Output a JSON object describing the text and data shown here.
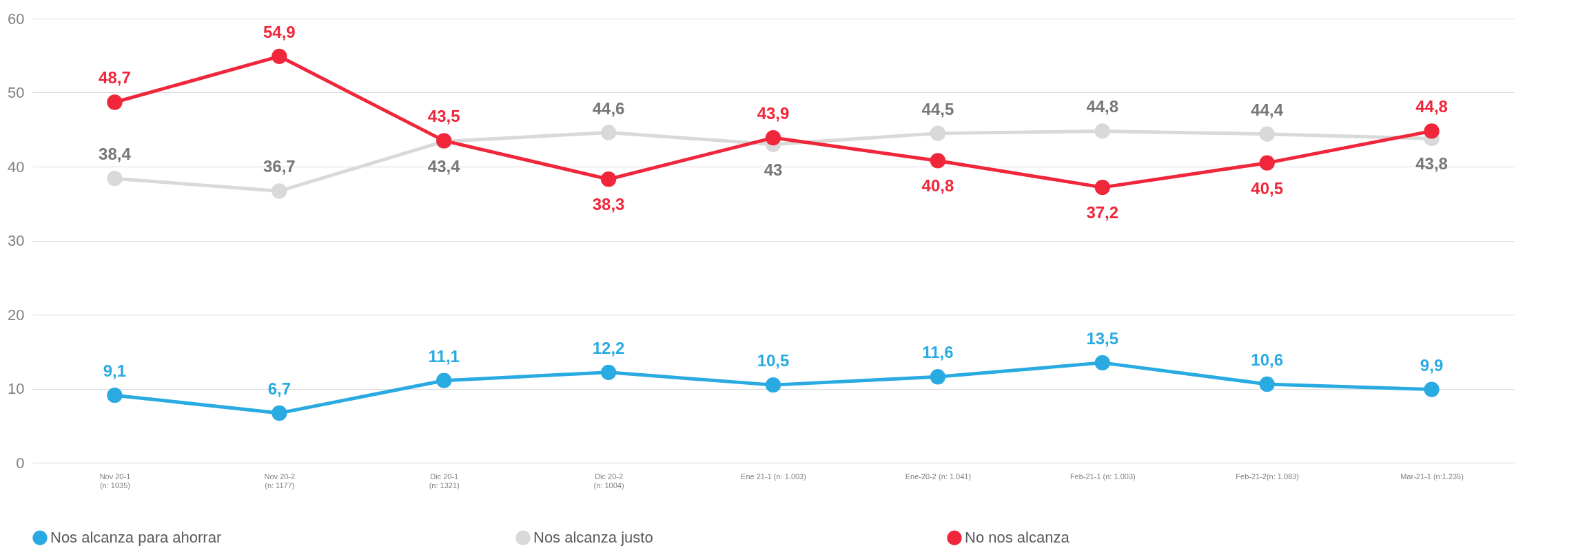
{
  "chart_data": {
    "type": "line",
    "categories": [
      "Nov 20-1\n(n: 1035)",
      "Nov 20-2\n(n: 1177)",
      "Dic 20-1\n(n: 1321)",
      "Dic 20-2\n(n: 1004)",
      "Ene 21-1 (n: 1.003)",
      "Ene-20-2 (n: 1.041)",
      "Feb-21-1 (n: 1.003)",
      "Feb-21-2(n: 1.083)",
      "Mar-21-1 (n:1.235)"
    ],
    "series": [
      {
        "name": "Nos alcanza para ahorrar",
        "color": "#29abe2",
        "values": [
          9.1,
          6.7,
          11.1,
          12.2,
          10.5,
          11.6,
          13.5,
          10.6,
          9.9
        ],
        "value_labels": [
          "9,1",
          "6,7",
          "11,1",
          "12,2",
          "10,5",
          "11,6",
          "13,5",
          "10,6",
          "9,9"
        ]
      },
      {
        "name": "Nos alcanza justo",
        "color": "#d9d9d9",
        "values": [
          38.4,
          36.7,
          43.4,
          44.6,
          43,
          44.5,
          44.8,
          44.4,
          43.8
        ],
        "value_labels": [
          "38,4",
          "36,7",
          "43,4",
          "44,6",
          "43",
          "44,5",
          "44,8",
          "44,4",
          "43,8"
        ]
      },
      {
        "name": "No nos alcanza",
        "color": "#f0263b",
        "values": [
          48.7,
          54.9,
          43.5,
          38.3,
          43.9,
          40.8,
          37.2,
          40.5,
          44.8
        ],
        "value_labels": [
          "48,7",
          "54,9",
          "43,5",
          "38,3",
          "43,9",
          "40,8",
          "37,2",
          "40,5",
          "44,8"
        ]
      }
    ],
    "ylim": [
      0,
      60
    ],
    "yticks": [
      0,
      10,
      20,
      30,
      40,
      50,
      60
    ],
    "grid": "y",
    "legend": "bottom",
    "marker": "circle",
    "line_style": "solid"
  }
}
